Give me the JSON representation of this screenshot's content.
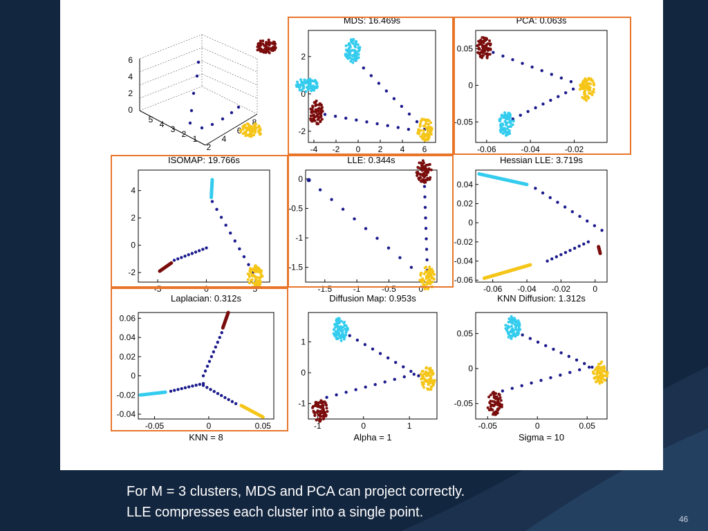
{
  "slide": {
    "caption_lines": [
      "For M = 3 clusters, MDS and PCA can project correctly.",
      "LLE compresses each cluster into a single point."
    ],
    "slide_number": "46"
  },
  "colors": {
    "maroon": "#7a0c0c",
    "cyan": "#33ccee",
    "yellow": "#f5c518",
    "blue": "#1a1a8c",
    "highlight": "#e8752a",
    "background": "#13263f"
  },
  "panels": [
    {
      "id": "original-3d",
      "title": "",
      "type": "scatter3d",
      "xticks": [
        "2",
        "4",
        "6",
        "8"
      ],
      "yticks": [
        "1",
        "2",
        "3",
        "4",
        "5"
      ],
      "zticks": [
        "0",
        "2",
        "4",
        "6"
      ]
    },
    {
      "id": "mds",
      "title": "MDS: 16.469s",
      "type": "scatter",
      "xlim": [
        -4.5,
        7
      ],
      "ylim": [
        -2.6,
        3.4
      ],
      "xticks": [
        "-4",
        "-2",
        "0",
        "2",
        "4",
        "6"
      ],
      "yticks": [
        "-2",
        "0",
        "2"
      ],
      "clusters": [
        {
          "color": "maroon",
          "x": -3.8,
          "y": -1.0
        },
        {
          "color": "cyan",
          "x": -0.5,
          "y": 2.3
        },
        {
          "color": "yellow",
          "x": 6.0,
          "y": -1.9
        }
      ],
      "paths": [
        {
          "from": [
            -0.2,
            1.8
          ],
          "to": [
            6.0,
            -1.9
          ]
        },
        {
          "from": [
            -3.0,
            -1.1
          ],
          "to": [
            5.5,
            -2.0
          ]
        }
      ]
    },
    {
      "id": "pca",
      "title": "PCA: 0.063s",
      "type": "scatter",
      "xlim": [
        -0.065,
        -0.005
      ],
      "ylim": [
        -0.078,
        0.075
      ],
      "xticks": [
        "-0.06",
        "-0.04",
        "-0.02"
      ],
      "yticks": [
        "-0.05",
        "0",
        "0.05"
      ],
      "clusters": [
        {
          "color": "maroon",
          "x": -0.061,
          "y": 0.052
        },
        {
          "color": "cyan",
          "x": -0.051,
          "y": -0.053
        },
        {
          "color": "yellow",
          "x": -0.014,
          "y": -0.005
        }
      ],
      "paths": [
        {
          "from": [
            -0.057,
            0.045
          ],
          "to": [
            -0.017,
            0.0
          ]
        },
        {
          "from": [
            -0.048,
            -0.046
          ],
          "to": [
            -0.017,
            0.0
          ]
        }
      ]
    },
    {
      "id": "isomap",
      "title": "ISOMAP: 19.766s",
      "type": "scatter",
      "xlim": [
        -7,
        6.5
      ],
      "ylim": [
        -2.7,
        5.5
      ],
      "xticks": [
        "-5",
        "0",
        "5"
      ],
      "yticks": [
        "-2",
        "0",
        "2",
        "4"
      ],
      "clusters": [
        {
          "color": "maroon",
          "x": -4.8,
          "y": -1.9,
          "shape": "line",
          "to": [
            -3.6,
            -1.3
          ]
        },
        {
          "color": "cyan",
          "x": 0.6,
          "y": 4.8,
          "shape": "line",
          "to": [
            0.5,
            3.5
          ]
        },
        {
          "color": "yellow",
          "x": 5.0,
          "y": -2.3
        }
      ],
      "paths": [
        {
          "from": [
            0.6,
            3.2
          ],
          "to": [
            4.8,
            -2.0
          ]
        },
        {
          "from": [
            -3.3,
            -1.1
          ],
          "to": [
            0.0,
            -0.2
          ]
        }
      ]
    },
    {
      "id": "lle",
      "title": "LLE: 0.344s",
      "type": "scatter",
      "xlim": [
        -1.8,
        0.25
      ],
      "ylim": [
        -1.75,
        0.15
      ],
      "xticks": [
        "-1.5",
        "-1",
        "-0.5",
        "0"
      ],
      "yticks": [
        "-1.5",
        "-1",
        "-0.5",
        "0"
      ],
      "clusters": [
        {
          "color": "blue",
          "x": -1.75,
          "y": -0.02
        },
        {
          "color": "maroon",
          "x": 0.05,
          "y": 0.12
        },
        {
          "color": "yellow",
          "x": 0.1,
          "y": -1.68
        }
      ],
      "paths": [
        {
          "from": [
            -1.75,
            -0.02
          ],
          "to": [
            -0.15,
            -1.5
          ]
        },
        {
          "from": [
            0.05,
            0.05
          ],
          "to": [
            0.1,
            -1.55
          ]
        }
      ]
    },
    {
      "id": "hessian-lle",
      "title": "Hessian LLE: 3.719s",
      "type": "scatter",
      "xlim": [
        -0.07,
        0.007
      ],
      "ylim": [
        -0.062,
        0.055
      ],
      "xticks": [
        "-0.06",
        "-0.04",
        "-0.02",
        "0"
      ],
      "yticks": [
        "-0.06",
        "-0.04",
        "-0.02",
        "0",
        "0.02",
        "0.04"
      ],
      "clusters": [
        {
          "color": "cyan",
          "x": -0.068,
          "y": 0.051,
          "shape": "line",
          "to": [
            -0.04,
            0.04
          ]
        },
        {
          "color": "yellow",
          "x": -0.065,
          "y": -0.058,
          "shape": "line",
          "to": [
            -0.038,
            -0.044
          ]
        },
        {
          "color": "maroon",
          "x": 0.002,
          "y": -0.025,
          "shape": "line",
          "to": [
            0.003,
            -0.032
          ]
        }
      ],
      "paths": [
        {
          "from": [
            -0.035,
            0.036
          ],
          "to": [
            0.004,
            -0.008
          ]
        },
        {
          "from": [
            -0.028,
            -0.04
          ],
          "to": [
            -0.004,
            -0.02
          ]
        }
      ]
    },
    {
      "id": "laplacian",
      "title": "Laplacian: 0.312s",
      "type": "scatter",
      "xlim": [
        -0.065,
        0.06
      ],
      "ylim": [
        -0.045,
        0.066
      ],
      "xticks": [
        "-0.05",
        "0",
        "0.05"
      ],
      "yticks": [
        "-0.04",
        "-0.02",
        "0",
        "0.02",
        "0.04",
        "0.06"
      ],
      "footer": "KNN = 8",
      "clusters": [
        {
          "color": "maroon",
          "x": 0.013,
          "y": 0.05,
          "shape": "line",
          "to": [
            0.018,
            0.066
          ]
        },
        {
          "color": "cyan",
          "x": -0.063,
          "y": -0.02,
          "shape": "line",
          "to": [
            -0.04,
            -0.017
          ]
        },
        {
          "color": "yellow",
          "x": 0.05,
          "y": -0.043,
          "shape": "line",
          "to": [
            0.03,
            -0.031
          ]
        }
      ],
      "paths": [
        {
          "from": [
            0.012,
            0.045
          ],
          "to": [
            -0.005,
            0.0
          ]
        },
        {
          "from": [
            -0.035,
            -0.016
          ],
          "to": [
            -0.005,
            -0.008
          ]
        },
        {
          "from": [
            -0.005,
            -0.01
          ],
          "to": [
            0.025,
            -0.029
          ]
        }
      ]
    },
    {
      "id": "diffusion-map",
      "title": "Diffusion Map: 0.953s",
      "type": "scatter",
      "xlim": [
        -1.2,
        1.6
      ],
      "ylim": [
        -1.5,
        1.95
      ],
      "xticks": [
        "-1",
        "0",
        "1"
      ],
      "yticks": [
        "-1",
        "0",
        "1"
      ],
      "footer": "Alpha = 1",
      "clusters": [
        {
          "color": "cyan",
          "x": -0.5,
          "y": 1.4
        },
        {
          "color": "yellow",
          "x": 1.4,
          "y": -0.2
        },
        {
          "color": "maroon",
          "x": -0.95,
          "y": -1.2
        }
      ],
      "paths": [
        {
          "from": [
            -0.3,
            1.2
          ],
          "to": [
            1.2,
            -0.1
          ]
        },
        {
          "from": [
            -0.8,
            -0.8
          ],
          "to": [
            1.1,
            -0.05
          ]
        }
      ]
    },
    {
      "id": "knn-diffusion",
      "title": "KNN Diffusion: 1.312s",
      "type": "scatter",
      "xlim": [
        -0.062,
        0.07
      ],
      "ylim": [
        -0.072,
        0.08
      ],
      "xticks": [
        "-0.05",
        "0",
        "0.05"
      ],
      "yticks": [
        "-0.05",
        "0",
        "0.05"
      ],
      "footer": "Sigma = 10",
      "clusters": [
        {
          "color": "cyan",
          "x": -0.025,
          "y": 0.058
        },
        {
          "color": "yellow",
          "x": 0.063,
          "y": -0.005
        },
        {
          "color": "maroon",
          "x": -0.043,
          "y": -0.05
        }
      ],
      "paths": [
        {
          "from": [
            -0.015,
            0.048
          ],
          "to": [
            0.055,
            0.002
          ]
        },
        {
          "from": [
            -0.035,
            -0.032
          ],
          "to": [
            0.052,
            0.002
          ]
        }
      ]
    }
  ]
}
